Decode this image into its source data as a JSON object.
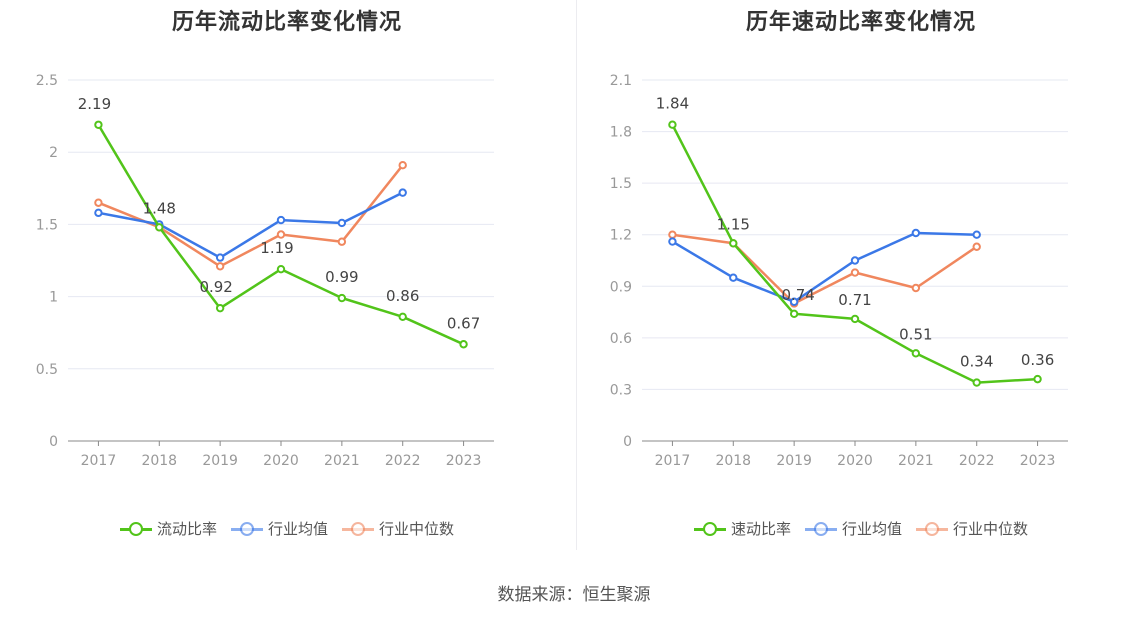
{
  "chart_data": [
    {
      "type": "line",
      "title": "历年流动比率变化情况",
      "categories": [
        "2017",
        "2018",
        "2019",
        "2020",
        "2021",
        "2022",
        "2023"
      ],
      "ylim": [
        0,
        2.5
      ],
      "yticks": [
        "0",
        "0.5",
        "1",
        "1.5",
        "2",
        "2.5"
      ],
      "ytick_values": [
        0,
        0.5,
        1,
        1.5,
        2,
        2.5
      ],
      "grid": true,
      "legend_position": "bottom",
      "series": [
        {
          "name": "流动比率",
          "color": "#52c41a",
          "values": [
            2.19,
            1.48,
            0.92,
            1.19,
            0.99,
            0.86,
            0.67
          ],
          "labels": [
            "2.19",
            "1.48",
            "0.92",
            "1.19",
            "0.99",
            "0.86",
            "0.67"
          ]
        },
        {
          "name": "行业均值",
          "color": "#3b78e7",
          "values": [
            1.58,
            1.5,
            1.27,
            1.53,
            1.51,
            1.72,
            null
          ]
        },
        {
          "name": "行业中位数",
          "color": "#f0875e",
          "values": [
            1.65,
            1.48,
            1.21,
            1.43,
            1.38,
            1.91,
            null
          ]
        }
      ]
    },
    {
      "type": "line",
      "title": "历年速动比率变化情况",
      "categories": [
        "2017",
        "2018",
        "2019",
        "2020",
        "2021",
        "2022",
        "2023"
      ],
      "ylim": [
        0,
        2.1
      ],
      "yticks": [
        "0",
        "0.3",
        "0.6",
        "0.9",
        "1.2",
        "1.5",
        "1.8",
        "2.1"
      ],
      "ytick_values": [
        0,
        0.3,
        0.6,
        0.9,
        1.2,
        1.5,
        1.8,
        2.1
      ],
      "grid": true,
      "legend_position": "bottom",
      "series": [
        {
          "name": "速动比率",
          "color": "#52c41a",
          "values": [
            1.84,
            1.15,
            0.74,
            0.71,
            0.51,
            0.34,
            0.36
          ],
          "labels": [
            "1.84",
            "1.15",
            "0.74",
            "0.71",
            "0.51",
            "0.34",
            "0.36"
          ]
        },
        {
          "name": "行业均值",
          "color": "#3b78e7",
          "values": [
            1.16,
            0.95,
            0.81,
            1.05,
            1.21,
            1.2,
            null
          ]
        },
        {
          "name": "行业中位数",
          "color": "#f0875e",
          "values": [
            1.2,
            1.15,
            0.8,
            0.98,
            0.89,
            1.13,
            null
          ]
        }
      ]
    }
  ],
  "footer": {
    "source": "数据来源：恒生聚源"
  }
}
